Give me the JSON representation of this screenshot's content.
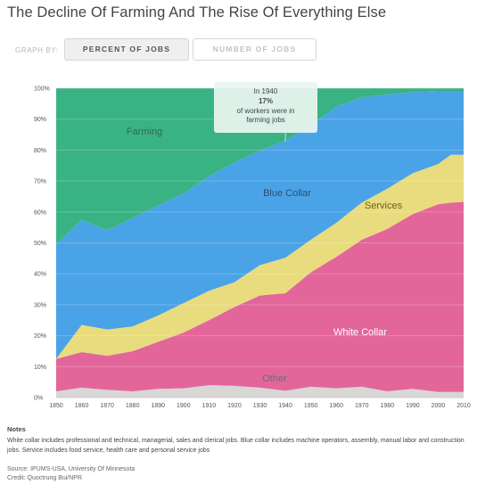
{
  "header": {
    "title": "The Decline Of Farming And The Rise Of Everything Else"
  },
  "controls": {
    "graph_by_label": "GRAPH BY:",
    "options": [
      "PERCENT OF JOBS",
      "NUMBER OF JOBS"
    ],
    "selected": "PERCENT OF JOBS"
  },
  "chart_data": {
    "type": "area",
    "stacked": true,
    "x": [
      1850,
      1860,
      1870,
      1880,
      1890,
      1900,
      1910,
      1920,
      1930,
      1940,
      1950,
      1960,
      1970,
      1980,
      1990,
      2000,
      2005,
      2010
    ],
    "xticks": [
      "1850",
      "1860",
      "1870",
      "1880",
      "1890",
      "1900",
      "1910",
      "1920",
      "1930",
      "1940",
      "1950",
      "1960",
      "1970",
      "1980",
      "1990",
      "2000",
      "2010"
    ],
    "yticks": [
      "0%",
      "10%",
      "20%",
      "30%",
      "40%",
      "50%",
      "60%",
      "70%",
      "80%",
      "90%",
      "100%"
    ],
    "ylim": [
      0,
      100
    ],
    "grid": true,
    "series": [
      {
        "name": "Other",
        "color": "#d9d6d6",
        "values": [
          2,
          3.2,
          2.5,
          2,
          2.8,
          3,
          4,
          3.8,
          3.2,
          2.2,
          3.5,
          3,
          3.5,
          2,
          2.8,
          1.8,
          1.8,
          1.8
        ]
      },
      {
        "name": "White Collar",
        "color": "#e3669b",
        "values": [
          10.5,
          11.5,
          11,
          13,
          15.2,
          18,
          21,
          25.5,
          29.8,
          31.5,
          37,
          42.5,
          47.5,
          52.5,
          56.5,
          60.7,
          61.2,
          61.5
        ]
      },
      {
        "name": "Services",
        "color": "#e8dc7e",
        "values": [
          0,
          8.8,
          8.5,
          8,
          8.5,
          9.5,
          9.5,
          8,
          9.8,
          11.5,
          10.5,
          11,
          12,
          13,
          13.2,
          13,
          15.5,
          15.2
        ]
      },
      {
        "name": "Blue Collar",
        "color": "#4aa3e6",
        "values": [
          37,
          34,
          32,
          35,
          35.5,
          35.5,
          37,
          38.7,
          37,
          37.8,
          37,
          37.5,
          34,
          30.5,
          26.2,
          23.5,
          20.5,
          20.5
        ]
      },
      {
        "name": "Farming",
        "color": "#3ab384",
        "values": [
          50.5,
          42.5,
          46,
          42,
          38,
          34,
          28.5,
          24,
          20.2,
          17,
          12,
          6,
          3,
          2,
          1.3,
          1,
          1,
          1
        ]
      }
    ],
    "labels": [
      {
        "text": "Farming",
        "color": "#2d6b4f"
      },
      {
        "text": "Blue Collar",
        "color": "#2a4f70"
      },
      {
        "text": "Services",
        "color": "#6b6120"
      },
      {
        "text": "White Collar",
        "color": "#ffffff"
      },
      {
        "text": "Other",
        "color": "#6e6e6e"
      }
    ],
    "annotation": {
      "year": 1940,
      "line1": "In 1940",
      "value": "17%",
      "line3": "of workers were in",
      "line4": "farming jobs"
    }
  },
  "footer": {
    "notes_heading": "Notes",
    "notes_text": "White collar includes professional and technical, managerial, sales and clerical jobs. Blue collar includes machine operators, assembly, manual labor and construction jobs. Service includes food service, health care and personal service jobs",
    "source": "Source: IPUMS-USA, University Of Minnesota",
    "credit": "Credit: Quoctrung Bui/NPR"
  }
}
